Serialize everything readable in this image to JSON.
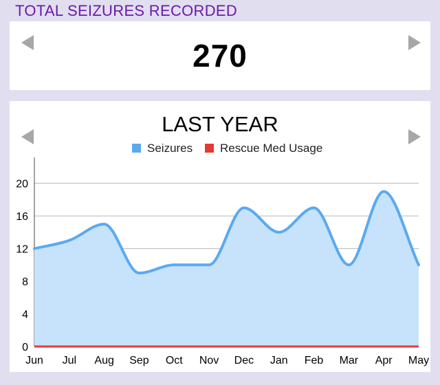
{
  "header": {
    "title": "TOTAL SEIZURES RECORDED"
  },
  "total": {
    "value": "270"
  },
  "chart_data": {
    "type": "area",
    "title": "LAST YEAR",
    "categories": [
      "Jun",
      "Jul",
      "Aug",
      "Sep",
      "Oct",
      "Nov",
      "Dec",
      "Jan",
      "Feb",
      "Mar",
      "Apr",
      "May"
    ],
    "series": [
      {
        "name": "Seizures",
        "color": "#5aaaf0",
        "fill": "#c7e2fb",
        "values": [
          12,
          13,
          15,
          9,
          10,
          10,
          17,
          14,
          17,
          10,
          19,
          10
        ]
      },
      {
        "name": "Rescue Med Usage",
        "color": "#e53935",
        "values": [
          0,
          0,
          0,
          0,
          0,
          0,
          0,
          0,
          0,
          0,
          0,
          0
        ]
      }
    ],
    "yticks": [
      0,
      4,
      8,
      12,
      16,
      20
    ],
    "ylim": [
      0,
      23
    ],
    "grid": true,
    "legend": "top"
  },
  "colors": {
    "background": "#e1def0",
    "header_text": "#6a1aa8",
    "arrow": "#a7a7a7"
  },
  "icons": {
    "prev": "left-triangle",
    "next": "right-triangle"
  }
}
